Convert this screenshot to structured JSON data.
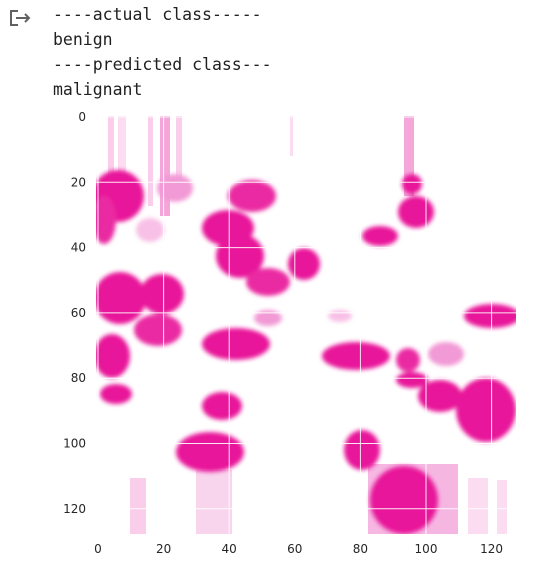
{
  "output": {
    "icon": "output-arrow-icon",
    "lines": [
      "----actual class-----",
      "benign",
      "----predicted class---",
      "malignant"
    ]
  },
  "chart_data": {
    "type": "heatmap",
    "title": "",
    "xlabel": "",
    "ylabel": "",
    "xlim": [
      0,
      128
    ],
    "ylim": [
      128,
      0
    ],
    "x_ticks": [
      "0",
      "20",
      "40",
      "60",
      "80",
      "100",
      "120"
    ],
    "y_ticks": [
      "0",
      "20",
      "40",
      "60",
      "80",
      "100",
      "120"
    ],
    "grid": true,
    "colors": {
      "stain": "#e8189a",
      "stain_light": "#f6a6dc",
      "background": "#ffffff"
    }
  }
}
